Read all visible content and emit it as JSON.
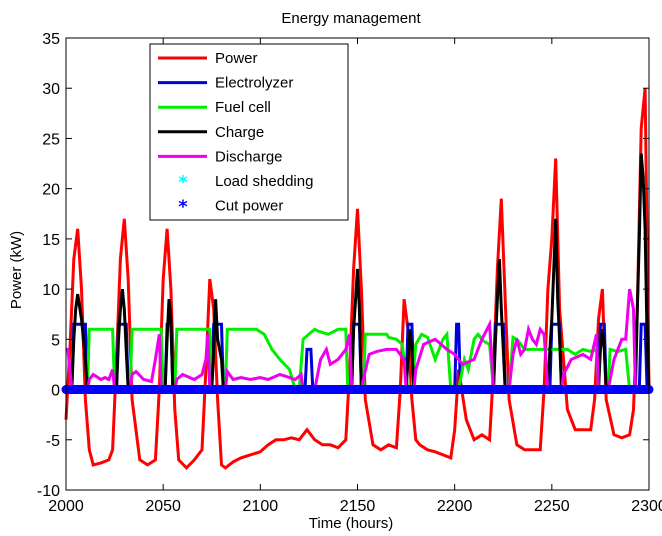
{
  "chart_data": {
    "type": "line",
    "title": "Energy management",
    "xlabel": "Time (hours)",
    "ylabel": "Power (kW)",
    "xlim": [
      2000,
      2300
    ],
    "ylim": [
      -10,
      35
    ],
    "xticks": [
      2000,
      2050,
      2100,
      2150,
      2200,
      2250,
      2300
    ],
    "yticks": [
      -10,
      -5,
      0,
      5,
      10,
      15,
      20,
      25,
      30,
      35
    ],
    "grid": false,
    "legend_position": "top-left",
    "series": [
      {
        "name": "Power",
        "color": "#ff0000",
        "style": "line",
        "x": [
          2000,
          2002,
          2004,
          2006,
          2008,
          2010,
          2012,
          2014,
          2018,
          2022,
          2024,
          2026,
          2028,
          2030,
          2032,
          2034,
          2038,
          2042,
          2046,
          2048,
          2050,
          2052,
          2054,
          2056,
          2058,
          2062,
          2066,
          2070,
          2072,
          2074,
          2076,
          2078,
          2080,
          2082,
          2086,
          2090,
          2095,
          2100,
          2104,
          2108,
          2112,
          2116,
          2120,
          2124,
          2128,
          2132,
          2136,
          2140,
          2144,
          2146,
          2148,
          2150,
          2152,
          2154,
          2158,
          2162,
          2166,
          2170,
          2172,
          2174,
          2176,
          2178,
          2180,
          2182,
          2186,
          2190,
          2194,
          2198,
          2200,
          2202,
          2206,
          2210,
          2214,
          2218,
          2220,
          2222,
          2224,
          2226,
          2228,
          2232,
          2236,
          2240,
          2244,
          2246,
          2248,
          2250,
          2252,
          2254,
          2258,
          2262,
          2266,
          2270,
          2272,
          2274,
          2276,
          2278,
          2282,
          2286,
          2290,
          2292,
          2294,
          2296,
          2298,
          2300
        ],
        "y": [
          -3,
          4,
          13,
          16,
          10,
          -1,
          -6,
          -7.5,
          -7.3,
          -7,
          -6,
          3,
          13,
          17,
          11,
          -1,
          -7,
          -7.5,
          -7,
          0,
          11,
          16,
          10,
          -2,
          -7,
          -7.8,
          -7,
          -6,
          2,
          11,
          8,
          -1,
          -7.5,
          -7.8,
          -7.2,
          -6.8,
          -6.5,
          -6.2,
          -5.5,
          -5,
          -5,
          -4.8,
          -5,
          -4,
          -5,
          -5.5,
          -5.5,
          -5.8,
          -5,
          2,
          12,
          18,
          10,
          -1,
          -5.5,
          -6,
          -5.5,
          -5.8,
          0,
          9,
          6,
          -1,
          -5,
          -5.5,
          -6,
          -6.2,
          -6.5,
          -6.8,
          -4,
          2,
          -3,
          -5,
          -4.5,
          -5,
          2,
          12,
          19,
          9,
          -1,
          -5.5,
          -6,
          -6,
          -6,
          0,
          10,
          15,
          23,
          8,
          -2,
          -4,
          -4,
          -4,
          -1,
          7,
          10,
          -1,
          -4.5,
          -4.8,
          -4.5,
          -2,
          8,
          26,
          30,
          0
        ]
      },
      {
        "name": "Electrolyzer",
        "color": "#0000dd",
        "style": "line",
        "x": [
          2000,
          2003,
          2004,
          2006,
          2008,
          2010,
          2011,
          2026,
          2027,
          2029,
          2031,
          2032,
          2051,
          2052,
          2054,
          2055,
          2075,
          2076,
          2078,
          2080,
          2081,
          2123,
          2124,
          2126,
          2127,
          2147,
          2148,
          2151,
          2152,
          2175,
          2176,
          2178,
          2179,
          2200,
          2201,
          2202,
          2203,
          2220,
          2221,
          2223,
          2225,
          2226,
          2249,
          2250,
          2252,
          2254,
          2255,
          2274,
          2275,
          2277,
          2278,
          2295,
          2296,
          2298,
          2299,
          2300
        ],
        "y": [
          0,
          0,
          6.5,
          6.5,
          6.5,
          6.5,
          0,
          0,
          6.5,
          6.5,
          6.5,
          0,
          0,
          6.5,
          6.5,
          0,
          0,
          6.5,
          6.5,
          6.5,
          0,
          0,
          4,
          4,
          0,
          0,
          6.5,
          6.5,
          0,
          0,
          6.5,
          6.5,
          0,
          0,
          6.5,
          6.5,
          0,
          0,
          6.5,
          6.5,
          6.5,
          0,
          0,
          6.5,
          6.5,
          6.5,
          0,
          0,
          6.5,
          6.5,
          0,
          0,
          6.5,
          6.5,
          0,
          0
        ]
      },
      {
        "name": "Fuel cell",
        "color": "#00ee00",
        "style": "line",
        "x": [
          2000,
          2011,
          2012,
          2024,
          2025,
          2033,
          2034,
          2049,
          2050,
          2056,
          2057,
          2074,
          2075,
          2082,
          2083,
          2098,
          2102,
          2106,
          2110,
          2115,
          2118,
          2120,
          2122,
          2125,
          2128,
          2130,
          2135,
          2140,
          2144,
          2145,
          2153,
          2154,
          2160,
          2165,
          2166,
          2170,
          2173,
          2176,
          2178,
          2180,
          2183,
          2186,
          2190,
          2194,
          2196,
          2198,
          2200,
          2202,
          2205,
          2207,
          2210,
          2212,
          2215,
          2218,
          2220,
          2228,
          2230,
          2232,
          2236,
          2242,
          2247,
          2256,
          2258,
          2262,
          2266,
          2270,
          2273,
          2274,
          2279,
          2280,
          2284,
          2288,
          2290,
          2300
        ],
        "y": [
          0,
          0,
          6,
          6,
          0,
          0,
          6,
          6,
          0,
          0,
          6,
          6,
          0,
          0,
          6,
          6,
          5.5,
          4,
          3,
          2,
          0,
          0,
          5,
          5.5,
          6,
          5.8,
          5.5,
          6,
          6,
          0,
          0,
          5.5,
          5.5,
          5.5,
          5.2,
          5,
          4.5,
          0,
          0,
          4.5,
          5.5,
          5.2,
          3,
          5,
          5.5,
          0,
          0,
          0,
          3,
          2,
          5,
          5.5,
          4.8,
          4.5,
          0,
          0,
          5.2,
          5,
          4,
          4,
          4,
          4,
          4,
          3.5,
          4,
          3.8,
          4,
          0,
          0,
          4,
          3.8,
          4,
          0,
          0
        ]
      },
      {
        "name": "Charge",
        "color": "#000000",
        "style": "line",
        "x": [
          2000,
          2003,
          2004,
          2005,
          2006,
          2008,
          2010,
          2011,
          2026,
          2027,
          2028,
          2029,
          2030,
          2031,
          2032,
          2051,
          2052,
          2053,
          2054,
          2055,
          2075,
          2076,
          2077,
          2078,
          2080,
          2081,
          2147,
          2148,
          2149,
          2150,
          2151,
          2152,
          2175,
          2176,
          2177,
          2178,
          2179,
          2220,
          2221,
          2222,
          2223,
          2224,
          2225,
          2226,
          2248,
          2249,
          2250,
          2251,
          2252,
          2253,
          2254,
          2255,
          2274,
          2275,
          2276,
          2277,
          2278,
          2293,
          2294,
          2295,
          2296,
          2297,
          2298,
          2299,
          2300
        ],
        "y": [
          0,
          0,
          5,
          8,
          9.5,
          7,
          3,
          0,
          0,
          5,
          8,
          10,
          8,
          4,
          0,
          0,
          5,
          9,
          7,
          0,
          0,
          4,
          9,
          5,
          3,
          0,
          0,
          6,
          9,
          12,
          8,
          0,
          0,
          3,
          6,
          4,
          0,
          0,
          5,
          9,
          13,
          8,
          4,
          0,
          0,
          4,
          7,
          12,
          17,
          9,
          5,
          0,
          0,
          4,
          6,
          4,
          0,
          0,
          8,
          15,
          23.5,
          21,
          16,
          5,
          0
        ]
      },
      {
        "name": "Discharge",
        "color": "#ee00ee",
        "style": "line",
        "x": [
          2000,
          2001,
          2002,
          2003,
          2011,
          2012,
          2014,
          2018,
          2020,
          2022,
          2024,
          2025,
          2033,
          2034,
          2036,
          2040,
          2044,
          2046,
          2048,
          2049,
          2056,
          2057,
          2060,
          2066,
          2070,
          2072,
          2073,
          2074,
          2082,
          2083,
          2086,
          2090,
          2095,
          2100,
          2104,
          2110,
          2115,
          2118,
          2121,
          2122,
          2128,
          2131,
          2134,
          2136,
          2140,
          2142,
          2144,
          2146,
          2147,
          2152,
          2153,
          2156,
          2160,
          2165,
          2170,
          2174,
          2175,
          2179,
          2180,
          2184,
          2190,
          2196,
          2200,
          2204,
          2210,
          2214,
          2218,
          2220,
          2228,
          2230,
          2232,
          2234,
          2236,
          2238,
          2240,
          2242,
          2244,
          2246,
          2248,
          2255,
          2256,
          2260,
          2266,
          2270,
          2273,
          2274,
          2279,
          2282,
          2284,
          2286,
          2288,
          2290,
          2292,
          2293,
          2299,
          2300
        ],
        "y": [
          4,
          4,
          2,
          0,
          0,
          1,
          1.5,
          1,
          1.2,
          1,
          2,
          0,
          0,
          1.5,
          1.8,
          1,
          0.8,
          3,
          5.5,
          0,
          0,
          1,
          1.5,
          1,
          1.5,
          3,
          5.5,
          0,
          0,
          1.8,
          1,
          1.2,
          1,
          1.2,
          1,
          1.5,
          1.2,
          1,
          1.5,
          0,
          0,
          3,
          4,
          2.5,
          3,
          3.5,
          4,
          5.5,
          0,
          0,
          1,
          3.5,
          3.8,
          4,
          4,
          3,
          0,
          0,
          2,
          4.5,
          5,
          4,
          3.5,
          2.5,
          3,
          5,
          6.5,
          0,
          0,
          3.5,
          5,
          3.5,
          4,
          6,
          5,
          4.5,
          6,
          5.5,
          0,
          0,
          1.5,
          3,
          3.5,
          3,
          5.5,
          0,
          0,
          3,
          4,
          5,
          5,
          10,
          8,
          0,
          0,
          0
        ]
      },
      {
        "name": "Load shedding",
        "color": "#00ffff",
        "style": "marker",
        "marker": "*",
        "x": [],
        "y": []
      },
      {
        "name": "Cut power",
        "color": "#0000ff",
        "style": "marker-line",
        "marker": "*",
        "x": [
          2000,
          2300
        ],
        "y": [
          0,
          0
        ]
      }
    ]
  }
}
